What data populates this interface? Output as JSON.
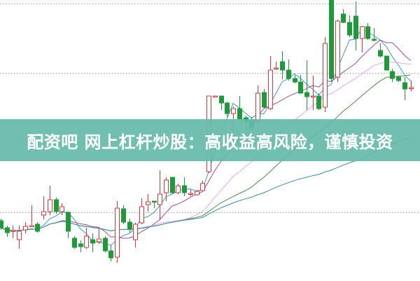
{
  "banner": {
    "title": "配资吧 网上杠杆炒股：高收益高风险，谨慎投资"
  },
  "chart_data": {
    "type": "candlestick",
    "title": "",
    "xlabel": "",
    "ylabel": "",
    "ylim": [
      0,
      401
    ],
    "grid": "horizontal-dotted",
    "gridlines": [
      0,
      98,
      196,
      297,
      396
    ],
    "colors": {
      "up": "#e0343c",
      "down": "#1f9a3a",
      "grid": "#999999"
    },
    "moving_averages": [
      {
        "period": 5,
        "color": "#3c9fb4"
      },
      {
        "period": 10,
        "color": "#9a4f92"
      },
      {
        "period": 20,
        "color": "#eaa6e6"
      },
      {
        "period": 30,
        "color": "#4d8d49"
      },
      {
        "period": 60,
        "color": "#3a8ea0"
      }
    ],
    "candles": [
      [
        86,
        89,
        73,
        76
      ],
      [
        76,
        79,
        63,
        69
      ],
      [
        71,
        79,
        61,
        72
      ],
      [
        59,
        79,
        46,
        71
      ],
      [
        73,
        84,
        68,
        78
      ],
      [
        78,
        108,
        78,
        79
      ],
      [
        81,
        84,
        69,
        71
      ],
      [
        94,
        121,
        88,
        99
      ],
      [
        99,
        136,
        94,
        116
      ],
      [
        116,
        119,
        96,
        99
      ],
      [
        99,
        111,
        94,
        106
      ],
      [
        98,
        99,
        61,
        71
      ],
      [
        61,
        64,
        46,
        48
      ],
      [
        53,
        58,
        41,
        49
      ],
      [
        48,
        76,
        46,
        64
      ],
      [
        59,
        68,
        41,
        54
      ],
      [
        56,
        76,
        53,
        60
      ],
      [
        61,
        64,
        41,
        43
      ],
      [
        43,
        51,
        28,
        33
      ],
      [
        34,
        114,
        26,
        104
      ],
      [
        103,
        108,
        81,
        84
      ],
      [
        84,
        89,
        69,
        74
      ],
      [
        59,
        83,
        48,
        81
      ],
      [
        83,
        118,
        81,
        106
      ],
      [
        109,
        124,
        99,
        113
      ],
      [
        114,
        114,
        104,
        113
      ],
      [
        109,
        158,
        88,
        124
      ],
      [
        126,
        148,
        114,
        144
      ],
      [
        148,
        148,
        124,
        126
      ],
      [
        126,
        139,
        124,
        136
      ],
      [
        136,
        148,
        121,
        126
      ],
      [
        125,
        131,
        121,
        125
      ],
      [
        123,
        130,
        122,
        128
      ],
      [
        129,
        143,
        128,
        139
      ],
      [
        156,
        264,
        154,
        264
      ],
      [
        264,
        264,
        264,
        264
      ],
      [
        264,
        264,
        244,
        254
      ],
      [
        254,
        256,
        234,
        239
      ],
      [
        239,
        249,
        214,
        246
      ],
      [
        246,
        264,
        231,
        231
      ],
      [
        233,
        236,
        216,
        228
      ],
      [
        228,
        234,
        214,
        218
      ],
      [
        228,
        279,
        214,
        268
      ],
      [
        269,
        274,
        246,
        248
      ],
      [
        246,
        321,
        244,
        301
      ],
      [
        303,
        313,
        301,
        304
      ],
      [
        313,
        328,
        288,
        301
      ],
      [
        301,
        316,
        286,
        289
      ],
      [
        289,
        294,
        282,
        284
      ],
      [
        284,
        294,
        268,
        268
      ],
      [
        269,
        315,
        244,
        263
      ],
      [
        263,
        293,
        244,
        264
      ],
      [
        264,
        268,
        244,
        246
      ],
      [
        248,
        348,
        241,
        339
      ],
      [
        401,
        401,
        284,
        289
      ],
      [
        291,
        373,
        284,
        371
      ],
      [
        381,
        388,
        368,
        369
      ],
      [
        369,
        379,
        348,
        351
      ],
      [
        378,
        399,
        329,
        346
      ],
      [
        346,
        364,
        326,
        363
      ],
      [
        363,
        368,
        344,
        346
      ],
      [
        345,
        361,
        342,
        344
      ],
      [
        329,
        339,
        319,
        321
      ],
      [
        321,
        321,
        301,
        301
      ],
      [
        299,
        303,
        284,
        289
      ],
      [
        291,
        293,
        284,
        286
      ],
      [
        283,
        291,
        258,
        274
      ],
      [
        275,
        286,
        271,
        276
      ]
    ]
  }
}
